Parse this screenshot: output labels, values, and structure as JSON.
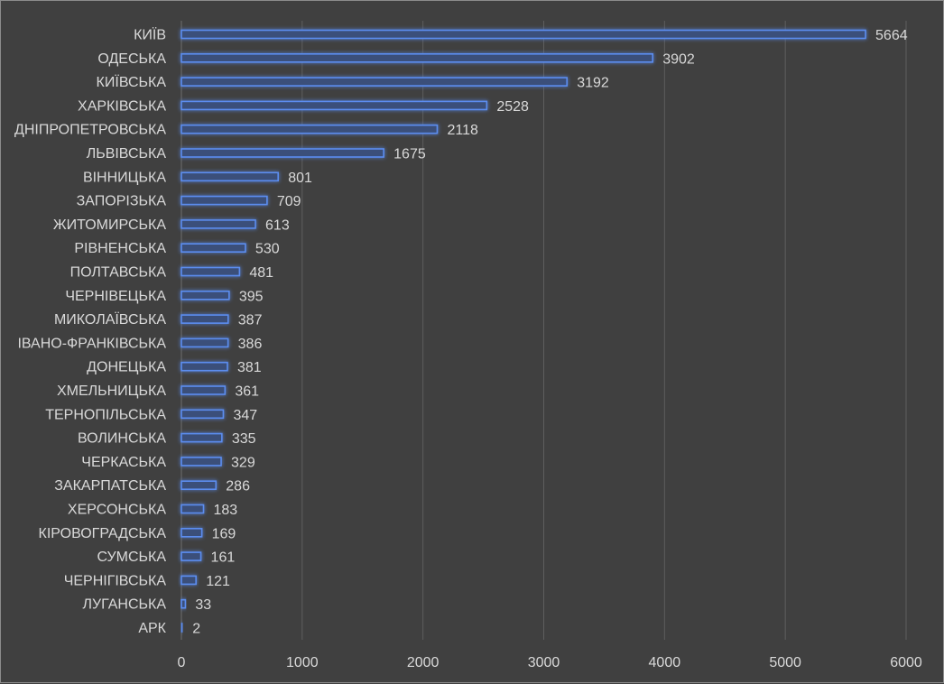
{
  "chart_data": {
    "type": "bar",
    "orientation": "horizontal",
    "categories": [
      "КИЇВ",
      "ОДЕСЬКА",
      "КИЇВСЬКА",
      "ХАРКІВСЬКА",
      "ДНІПРОПЕТРОВСЬКА",
      "ЛЬВІВСЬКА",
      "ВІННИЦЬКА",
      "ЗАПОРІЗЬКА",
      "ЖИТОМИРСЬКА",
      "РІВНЕНСЬКА",
      "ПОЛТАВСЬКА",
      "ЧЕРНІВЕЦЬКА",
      "МИКОЛАЇВСЬКА",
      "ІВАНО-ФРАНКІВСЬКА",
      "ДОНЕЦЬКА",
      "ХМЕЛЬНИЦЬКА",
      "ТЕРНОПІЛЬСЬКА",
      "ВОЛИНСЬКА",
      "ЧЕРКАСЬКА",
      "ЗАКАРПАТСЬКА",
      "ХЕРСОНСЬКА",
      "КІРОВОГРАДСЬКА",
      "СУМСЬКА",
      "ЧЕРНІГІВСЬКА",
      "ЛУГАНСЬКА",
      "АРК"
    ],
    "values": [
      5664,
      3902,
      3192,
      2528,
      2118,
      1675,
      801,
      709,
      613,
      530,
      481,
      395,
      387,
      386,
      381,
      361,
      347,
      335,
      329,
      286,
      183,
      169,
      161,
      121,
      33,
      2
    ],
    "title": "",
    "xlabel": "",
    "ylabel": "",
    "xlim": [
      0,
      6000
    ],
    "xticks": [
      0,
      1000,
      2000,
      3000,
      4000,
      5000,
      6000
    ],
    "grid": "vertical",
    "legend": "none",
    "data_labels": true,
    "colors": {
      "background": "#404040",
      "bar_fill": "#3b4f7a",
      "bar_stroke": "#5b8def",
      "text": "#d9d9d9",
      "grid": "#5e5e5e"
    }
  }
}
